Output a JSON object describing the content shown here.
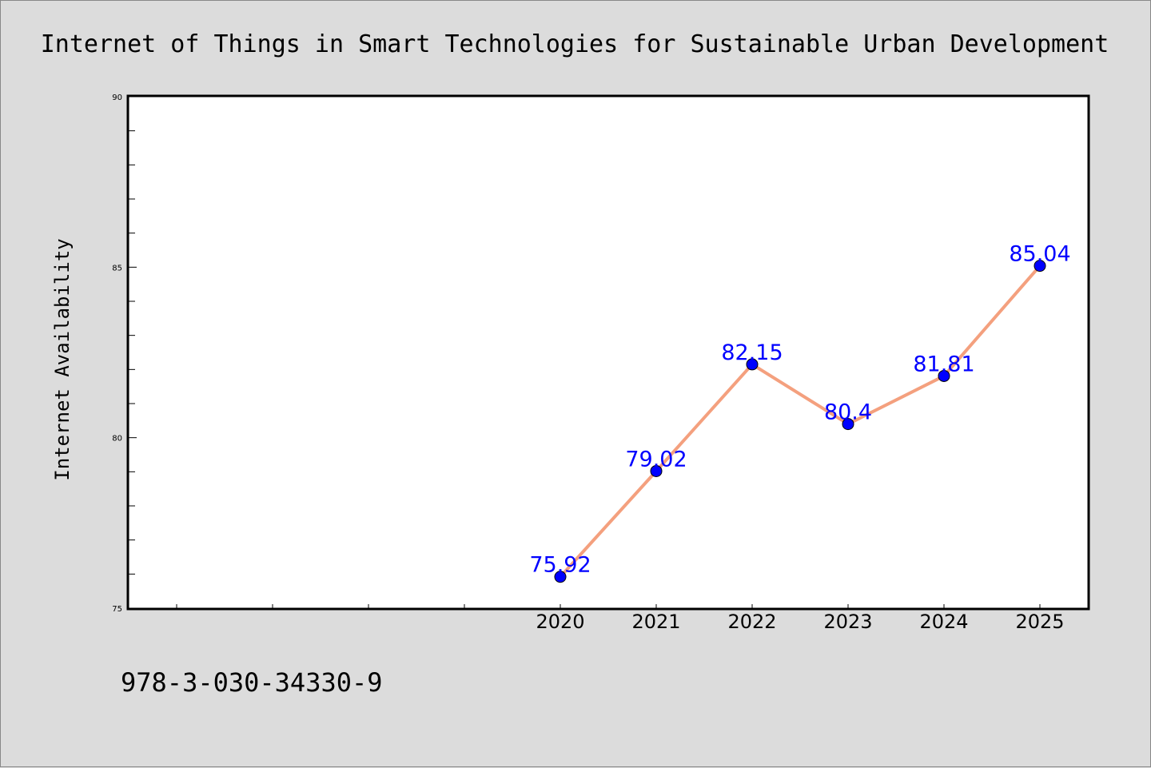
{
  "chart_data": {
    "type": "line",
    "title": "Internet of Things in Smart Technologies for Sustainable Urban Development",
    "xlabel": "",
    "ylabel": "Internet Availability",
    "x": [
      "2020",
      "2021",
      "2022",
      "2023",
      "2024",
      "2025"
    ],
    "series": [
      {
        "values": [
          75.92,
          79.02,
          82.15,
          80.4,
          81.81,
          85.04
        ],
        "labels": [
          "75.92",
          "79.02",
          "82.15",
          "80.4",
          "81.81",
          "85.04"
        ]
      }
    ],
    "ylim": [
      75,
      90
    ],
    "yticks": [
      "75",
      "80",
      "85",
      "90"
    ],
    "grid": false,
    "legend": "none"
  },
  "footer": {
    "isbn": "978-3-030-34330-9"
  },
  "colors": {
    "background": "#dcdcdc",
    "plot_background": "#ffffff",
    "line": "#f4a07e",
    "marker": "#0000ff",
    "data_label": "#0000ff"
  }
}
